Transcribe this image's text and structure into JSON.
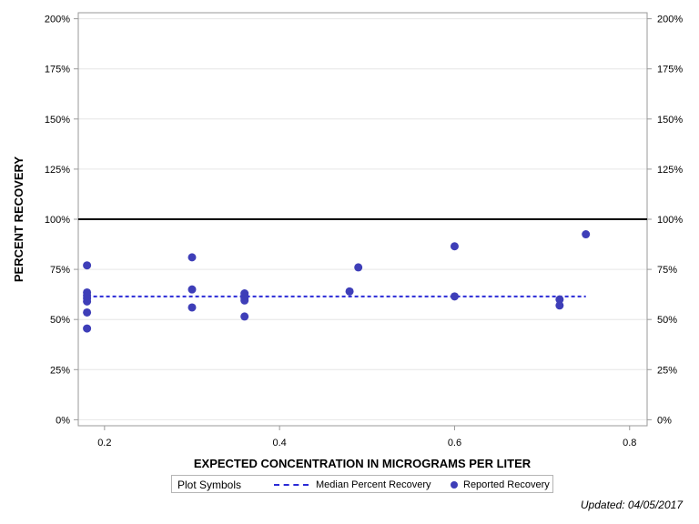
{
  "chart_data": {
    "type": "scatter",
    "xlabel": "EXPECTED CONCENTRATION IN MICROGRAMS PER LITER",
    "ylabel": "PERCENT RECOVERY",
    "xlim": [
      0.17,
      0.82
    ],
    "ylim": [
      -3,
      203
    ],
    "x_ticks": [
      0.2,
      0.4,
      0.6,
      0.8
    ],
    "x_tick_labels": [
      "0.2",
      "0.4",
      "0.6",
      "0.8"
    ],
    "y_ticks": [
      0,
      25,
      50,
      75,
      100,
      125,
      150,
      175,
      200
    ],
    "y_tick_labels": [
      "0%",
      "25%",
      "50%",
      "75%",
      "100%",
      "125%",
      "150%",
      "175%",
      "200%"
    ],
    "reference_line": {
      "y": 100,
      "color": "#000000"
    },
    "grid": true,
    "series": [
      {
        "name": "Reported Recovery",
        "color": "#3e3eb8",
        "points": [
          {
            "x": 0.18,
            "y": 77
          },
          {
            "x": 0.18,
            "y": 63.5
          },
          {
            "x": 0.18,
            "y": 62
          },
          {
            "x": 0.18,
            "y": 60.5
          },
          {
            "x": 0.18,
            "y": 59
          },
          {
            "x": 0.18,
            "y": 53.5
          },
          {
            "x": 0.18,
            "y": 45.5
          },
          {
            "x": 0.3,
            "y": 81
          },
          {
            "x": 0.3,
            "y": 65
          },
          {
            "x": 0.3,
            "y": 56
          },
          {
            "x": 0.36,
            "y": 63
          },
          {
            "x": 0.36,
            "y": 62
          },
          {
            "x": 0.36,
            "y": 60.5
          },
          {
            "x": 0.36,
            "y": 59.5
          },
          {
            "x": 0.36,
            "y": 51.5
          },
          {
            "x": 0.48,
            "y": 64
          },
          {
            "x": 0.49,
            "y": 76
          },
          {
            "x": 0.6,
            "y": 86.5
          },
          {
            "x": 0.6,
            "y": 61.5
          },
          {
            "x": 0.72,
            "y": 60
          },
          {
            "x": 0.72,
            "y": 57
          },
          {
            "x": 0.75,
            "y": 92.5
          }
        ]
      },
      {
        "name": "Median Percent Recovery",
        "type": "line",
        "style": "dashed",
        "color": "#2b2bd6",
        "x": [
          0.18,
          0.75
        ],
        "y": [
          61.5,
          61.5
        ]
      }
    ],
    "legend": {
      "placement": "bottom",
      "title": "Plot Symbols",
      "entries": [
        "Median Percent Recovery",
        "Reported Recovery"
      ]
    }
  },
  "footer": {
    "updated": "Updated: 04/05/2017"
  }
}
